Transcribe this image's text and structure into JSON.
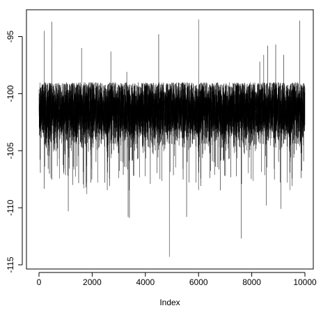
{
  "chart_data": {
    "type": "line",
    "title": "",
    "xlabel": "Index",
    "ylabel": "",
    "xlim": [
      0,
      10000
    ],
    "ylim": [
      -115,
      -93
    ],
    "grid": false,
    "legend": "none",
    "x_ticks": [
      0,
      2000,
      4000,
      6000,
      8000,
      10000
    ],
    "x_tick_labels": [
      "0",
      "2000",
      "4000",
      "6000",
      "8000",
      "10000"
    ],
    "y_ticks": [
      -95,
      -100,
      -105,
      -110,
      -115
    ],
    "y_tick_labels": [
      "-95",
      "-100",
      "-105",
      "-110",
      "-115"
    ],
    "n_points": 10000,
    "band": {
      "typical_upper": -99.0,
      "typical_lower": -104.5,
      "center": -101.5
    },
    "spikes_high": [
      {
        "x": 200,
        "y": -94.5
      },
      {
        "x": 480,
        "y": -93.7
      },
      {
        "x": 1600,
        "y": -96.0
      },
      {
        "x": 2700,
        "y": -96.3
      },
      {
        "x": 3300,
        "y": -98.1
      },
      {
        "x": 4500,
        "y": -94.8
      },
      {
        "x": 6000,
        "y": -93.5
      },
      {
        "x": 8300,
        "y": -97.2
      },
      {
        "x": 8450,
        "y": -96.6
      },
      {
        "x": 8600,
        "y": -95.8
      },
      {
        "x": 8900,
        "y": -95.7
      },
      {
        "x": 9200,
        "y": -96.6
      },
      {
        "x": 9800,
        "y": -93.6
      }
    ],
    "spikes_low": [
      {
        "x": 1100,
        "y": -110.3
      },
      {
        "x": 1800,
        "y": -108.8
      },
      {
        "x": 3350,
        "y": -110.8
      },
      {
        "x": 3400,
        "y": -110.9
      },
      {
        "x": 4900,
        "y": -114.3
      },
      {
        "x": 5550,
        "y": -110.8
      },
      {
        "x": 7600,
        "y": -112.7
      },
      {
        "x": 8550,
        "y": -109.8
      },
      {
        "x": 9100,
        "y": -110.1
      }
    ],
    "line_color": "#000000"
  }
}
